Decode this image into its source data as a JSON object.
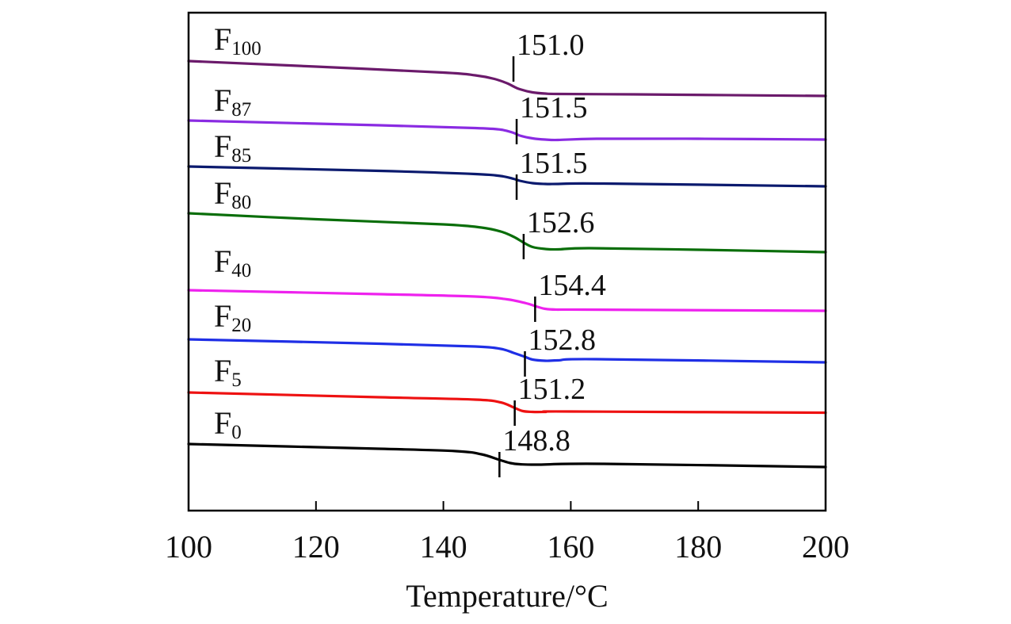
{
  "chart_data": {
    "type": "line",
    "title": "",
    "xlabel": "Temperature/°C",
    "ylabel": "",
    "xlim": [
      100,
      200
    ],
    "xticks": [
      100,
      120,
      140,
      160,
      180,
      200
    ],
    "grid": false,
    "legend": "inline labels at left",
    "series": [
      {
        "name": "F100",
        "label_main": "F",
        "label_sub": "100",
        "color": "#6b1a6b",
        "tg": 151.0,
        "tg_label": "151.0",
        "x": [
          100,
          120,
          140,
          145,
          148,
          150,
          151,
          152,
          154,
          156,
          158,
          170,
          200
        ],
        "y": [
          0,
          -1.4,
          -2.9,
          -3.6,
          -4.5,
          -5.6,
          -6.4,
          -7.1,
          -7.9,
          -8.2,
          -8.3,
          -8.4,
          -8.8
        ]
      },
      {
        "name": "F87",
        "label_main": "F",
        "label_sub": "87",
        "color": "#8a2be2",
        "tg": 151.5,
        "tg_label": "151.5",
        "x": [
          100,
          130,
          145,
          149,
          151,
          152,
          154,
          156,
          158,
          164,
          180,
          200
        ],
        "y": [
          0,
          -1.2,
          -1.9,
          -2.3,
          -3.1,
          -3.8,
          -4.5,
          -4.8,
          -4.9,
          -4.6,
          -4.6,
          -4.8
        ]
      },
      {
        "name": "F85",
        "label_main": "F",
        "label_sub": "85",
        "color": "#0b1a6e",
        "tg": 151.5,
        "tg_label": "151.5",
        "x": [
          100,
          130,
          145,
          149,
          151,
          152,
          154,
          156,
          158,
          165,
          200
        ],
        "y": [
          0,
          -1.1,
          -1.9,
          -2.4,
          -3.1,
          -3.6,
          -4.2,
          -4.4,
          -4.4,
          -4.3,
          -5.0
        ]
      },
      {
        "name": "F80",
        "label_main": "F",
        "label_sub": "80",
        "color": "#0a6e0a",
        "tg": 152.6,
        "tg_label": "152.6",
        "x": [
          100,
          120,
          140,
          146,
          149,
          151,
          152.6,
          154,
          156,
          158,
          163,
          180,
          200
        ],
        "y": [
          0,
          -1.5,
          -2.8,
          -3.6,
          -4.6,
          -5.9,
          -7.4,
          -8.5,
          -9.0,
          -9.1,
          -8.8,
          -9.2,
          -9.8
        ]
      },
      {
        "name": "F40",
        "label_main": "F",
        "label_sub": "40",
        "color": "#ee22ee",
        "tg": 154.4,
        "tg_label": "154.4",
        "x": [
          100,
          130,
          145,
          150,
          153,
          154.4,
          156,
          158,
          162,
          200
        ],
        "y": [
          0,
          -1.0,
          -1.6,
          -2.3,
          -3.3,
          -4.0,
          -4.7,
          -4.9,
          -4.9,
          -5.2
        ]
      },
      {
        "name": "F20",
        "label_main": "F",
        "label_sub": "20",
        "color": "#1f2fe6",
        "tg": 152.8,
        "tg_label": "152.8",
        "x": [
          100,
          130,
          145,
          149,
          151,
          152.8,
          154,
          156,
          158,
          164,
          200
        ],
        "y": [
          0,
          -1.1,
          -1.8,
          -2.4,
          -3.4,
          -4.4,
          -5.1,
          -5.4,
          -5.3,
          -5.0,
          -5.8
        ]
      },
      {
        "name": "F5",
        "label_main": "F",
        "label_sub": "5",
        "color": "#ee1111",
        "tg": 151.2,
        "tg_label": "151.2",
        "x": [
          100,
          130,
          145,
          149,
          151.2,
          152.5,
          154,
          156,
          160,
          200
        ],
        "y": [
          0,
          -1.2,
          -1.8,
          -2.5,
          -3.9,
          -4.7,
          -4.9,
          -4.9,
          -4.8,
          -5.1
        ]
      },
      {
        "name": "F0",
        "label_main": "F",
        "label_sub": "0",
        "color": "#000000",
        "tg": 148.8,
        "tg_label": "148.8",
        "x": [
          100,
          130,
          142,
          146,
          148.8,
          150.5,
          152,
          155,
          165,
          200
        ],
        "y": [
          0,
          -1.2,
          -1.8,
          -2.6,
          -4.0,
          -4.8,
          -5.1,
          -5.2,
          -5.0,
          -5.8
        ]
      }
    ]
  }
}
